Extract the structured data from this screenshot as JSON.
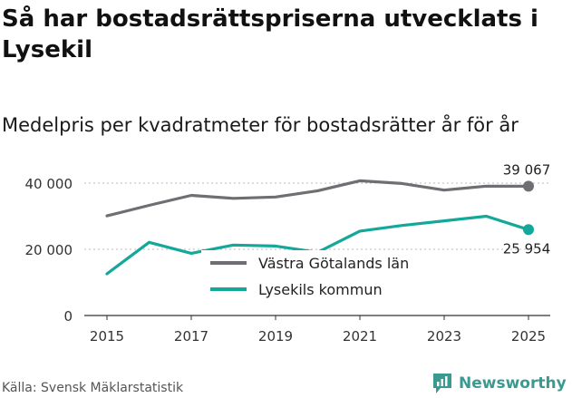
{
  "header": {
    "title": "Så har bostadsrättspriserna utvecklats i Lysekil",
    "subtitle": "Medelpris per kvadratmeter för bostadsrätter år för år"
  },
  "footer": {
    "source": "Källa: Svensk Mäklarstatistik",
    "brand": "Newsworthy",
    "brand_icon": "newsworthy-logo-icon"
  },
  "chart_data": {
    "type": "line",
    "title": "Så har bostadsrättspriserna utvecklats i Lysekil",
    "subtitle": "Medelpris per kvadratmeter för bostadsrätter år för år",
    "xlabel": "",
    "ylabel": "",
    "x": [
      2015,
      2016,
      2017,
      2018,
      2019,
      2020,
      2021,
      2022,
      2023,
      2024,
      2025
    ],
    "x_tick_labels": [
      "2015",
      "2017",
      "2019",
      "2021",
      "2023",
      "2025"
    ],
    "x_tick_values": [
      2015,
      2017,
      2019,
      2021,
      2023,
      2025
    ],
    "y_tick_labels": [
      "0",
      "20 000",
      "40 000"
    ],
    "y_tick_values": [
      0,
      20000,
      40000
    ],
    "ylim": [
      0,
      42000
    ],
    "grid": true,
    "legend_position": "center",
    "series": [
      {
        "name": "Västra Götalands län",
        "color": "#6e6e73",
        "values": [
          30100,
          33300,
          36300,
          35400,
          35800,
          37700,
          40700,
          39900,
          37900,
          39100,
          39067
        ],
        "end_label": "39 067"
      },
      {
        "name": "Lysekils kommun",
        "color": "#14a89b",
        "values": [
          12600,
          22100,
          18800,
          21300,
          21000,
          19100,
          25500,
          27200,
          28600,
          30000,
          25954
        ],
        "end_label": "25 954"
      }
    ]
  }
}
